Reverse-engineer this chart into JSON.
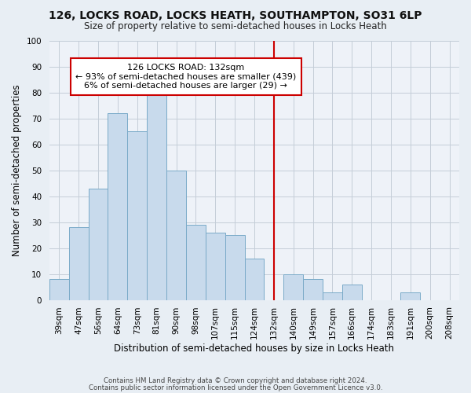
{
  "title": "126, LOCKS ROAD, LOCKS HEATH, SOUTHAMPTON, SO31 6LP",
  "subtitle": "Size of property relative to semi-detached houses in Locks Heath",
  "xlabel": "Distribution of semi-detached houses by size in Locks Heath",
  "ylabel": "Number of semi-detached properties",
  "footnote1": "Contains HM Land Registry data © Crown copyright and database right 2024.",
  "footnote2": "Contains public sector information licensed under the Open Government Licence v3.0.",
  "bar_labels": [
    "39sqm",
    "47sqm",
    "56sqm",
    "64sqm",
    "73sqm",
    "81sqm",
    "90sqm",
    "98sqm",
    "107sqm",
    "115sqm",
    "124sqm",
    "132sqm",
    "140sqm",
    "149sqm",
    "157sqm",
    "166sqm",
    "174sqm",
    "183sqm",
    "191sqm",
    "200sqm",
    "208sqm"
  ],
  "bar_values": [
    8,
    28,
    43,
    72,
    65,
    80,
    50,
    29,
    26,
    25,
    16,
    0,
    10,
    8,
    3,
    6,
    0,
    0,
    3,
    0,
    0
  ],
  "bar_color": "#c8daec",
  "bar_edge_color": "#7aaac8",
  "vline_color": "#cc0000",
  "annotation_title": "126 LOCKS ROAD: 132sqm",
  "annotation_line1": "← 93% of semi-detached houses are smaller (439)",
  "annotation_line2": "6% of semi-detached houses are larger (29) →",
  "annotation_box_color": "white",
  "annotation_box_edge": "#cc0000",
  "ylim": [
    0,
    100
  ],
  "yticks": [
    0,
    10,
    20,
    30,
    40,
    50,
    60,
    70,
    80,
    90,
    100
  ],
  "background_color": "#e8eef4",
  "plot_background": "#eef2f8",
  "grid_color": "#c4cdd8",
  "title_fontsize": 10,
  "subtitle_fontsize": 8.5,
  "xlabel_fontsize": 8.5,
  "ylabel_fontsize": 8.5,
  "tick_fontsize": 7.5,
  "footnote_fontsize": 6.2
}
